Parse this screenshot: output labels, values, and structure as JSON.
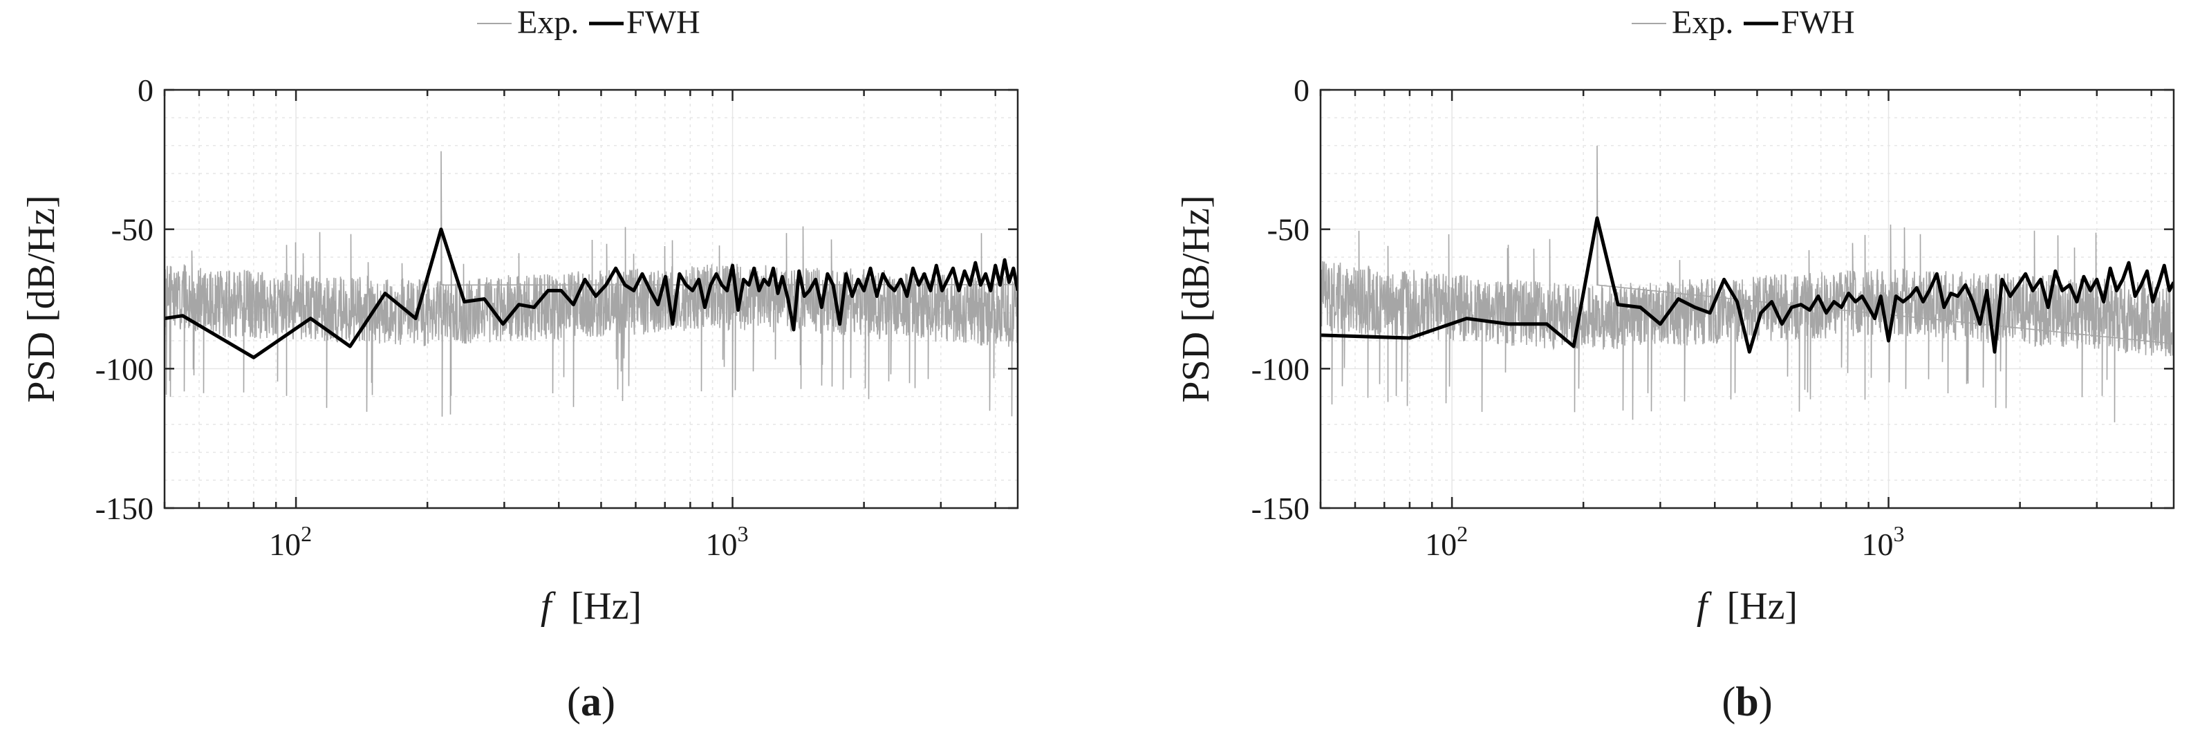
{
  "chart_data": [
    {
      "panel_label_open": "(",
      "panel_label_letter": "a",
      "panel_label_close": ")",
      "type": "line",
      "title": "",
      "xlabel_symbol": "f",
      "xlabel_unit": "[Hz]",
      "ylabel": "PSD [dB/Hz]",
      "xscale": "log",
      "xlim": [
        50,
        4500
      ],
      "ylim": [
        -150,
        0
      ],
      "xticks": [
        100,
        1000
      ],
      "xtick_labels": [
        {
          "base": "10",
          "exp": "2"
        },
        {
          "base": "10",
          "exp": "3"
        }
      ],
      "yticks": [
        0,
        -50,
        -100,
        -150
      ],
      "ytick_labels": [
        "0",
        "-50",
        "-100",
        "-150"
      ],
      "grid": true,
      "legend_position": "top-center",
      "series": [
        {
          "name": "Exp.",
          "color": "#a6a6a6",
          "style": "dense noisy band",
          "band_envelope": {
            "x": [
              50,
              100,
              200,
              1000,
              4500
            ],
            "center_db": [
              -75,
              -78,
              -80,
              -74,
              -80
            ],
            "half_width_db": [
              13,
              12,
              12,
              12,
              13
            ]
          },
          "peak": {
            "x": 215,
            "y": -22
          }
        },
        {
          "name": "FWH",
          "color": "#000000",
          "x": [
            50,
            55,
            80,
            108,
            133,
            160,
            188,
            215,
            243,
            270,
            298,
            324,
            351,
            378,
            405,
            432,
            459,
            486,
            513,
            540,
            567,
            594,
            621,
            648,
            675,
            702,
            729,
            756,
            783,
            810,
            837,
            864,
            891,
            918,
            945,
            972,
            1000,
            1030,
            1060,
            1090,
            1120,
            1150,
            1180,
            1210,
            1240,
            1270,
            1300,
            1340,
            1380,
            1420,
            1460,
            1500,
            1550,
            1600,
            1650,
            1700,
            1760,
            1820,
            1880,
            1940,
            2000,
            2070,
            2140,
            2210,
            2280,
            2350,
            2430,
            2510,
            2590,
            2670,
            2750,
            2840,
            2930,
            3020,
            3110,
            3200,
            3300,
            3400,
            3500,
            3600,
            3700,
            3800,
            3900,
            4000,
            4100,
            4200,
            4300,
            4400,
            4500
          ],
          "y": [
            -82,
            -81,
            -96,
            -82,
            -92,
            -73,
            -82,
            -50,
            -76,
            -75,
            -84,
            -77,
            -78,
            -72,
            -72,
            -77,
            -68,
            -74,
            -70,
            -64,
            -70,
            -72,
            -66,
            -72,
            -77,
            -67,
            -84,
            -66,
            -70,
            -72,
            -68,
            -78,
            -70,
            -66,
            -70,
            -72,
            -63,
            -79,
            -68,
            -70,
            -64,
            -72,
            -68,
            -70,
            -64,
            -73,
            -67,
            -75,
            -86,
            -65,
            -74,
            -72,
            -68,
            -78,
            -66,
            -70,
            -84,
            -66,
            -74,
            -68,
            -72,
            -64,
            -74,
            -66,
            -70,
            -72,
            -68,
            -74,
            -64,
            -70,
            -66,
            -72,
            -63,
            -72,
            -68,
            -64,
            -72,
            -65,
            -70,
            -62,
            -70,
            -66,
            -72,
            -63,
            -70,
            -61,
            -69,
            -64,
            -72
          ]
        }
      ]
    },
    {
      "panel_label_open": "(",
      "panel_label_letter": "b",
      "panel_label_close": ")",
      "type": "line",
      "title": "",
      "xlabel_symbol": "f",
      "xlabel_unit": "[Hz]",
      "ylabel": "PSD [dB/Hz]",
      "xscale": "log",
      "xlim": [
        50,
        4500
      ],
      "ylim": [
        -150,
        0
      ],
      "xticks": [
        100,
        1000
      ],
      "xtick_labels": [
        {
          "base": "10",
          "exp": "2"
        },
        {
          "base": "10",
          "exp": "3"
        }
      ],
      "yticks": [
        0,
        -50,
        -100,
        -150
      ],
      "ytick_labels": [
        "0",
        "-50",
        "-100",
        "-150"
      ],
      "grid": true,
      "legend_position": "top-center",
      "series": [
        {
          "name": "Exp.",
          "color": "#a6a6a6",
          "style": "dense noisy band",
          "band_envelope": {
            "x": [
              50,
              100,
              200,
              1000,
              4500
            ],
            "center_db": [
              -74,
              -78,
              -82,
              -76,
              -82
            ],
            "half_width_db": [
              13,
              12,
              12,
              12,
              14
            ]
          },
          "peak": {
            "x": 215,
            "y": -20
          }
        },
        {
          "name": "FWH",
          "color": "#000000",
          "x": [
            50,
            80,
            108,
            135,
            165,
            190,
            215,
            240,
            270,
            300,
            330,
            360,
            390,
            420,
            450,
            480,
            510,
            540,
            570,
            600,
            630,
            660,
            690,
            720,
            750,
            780,
            810,
            840,
            870,
            900,
            930,
            960,
            1000,
            1040,
            1080,
            1120,
            1160,
            1200,
            1240,
            1290,
            1340,
            1390,
            1440,
            1500,
            1560,
            1620,
            1680,
            1750,
            1820,
            1900,
            1980,
            2060,
            2140,
            2230,
            2320,
            2410,
            2500,
            2600,
            2700,
            2800,
            2900,
            3000,
            3110,
            3220,
            3330,
            3440,
            3550,
            3670,
            3790,
            3910,
            4030,
            4150,
            4280,
            4400,
            4500
          ],
          "y": [
            -88,
            -89,
            -82,
            -84,
            -84,
            -92,
            -46,
            -77,
            -78,
            -84,
            -75,
            -78,
            -80,
            -68,
            -76,
            -94,
            -80,
            -76,
            -84,
            -78,
            -77,
            -79,
            -74,
            -80,
            -76,
            -78,
            -73,
            -76,
            -74,
            -78,
            -82,
            -74,
            -90,
            -74,
            -76,
            -74,
            -71,
            -76,
            -72,
            -66,
            -78,
            -73,
            -74,
            -70,
            -76,
            -84,
            -72,
            -94,
            -68,
            -74,
            -70,
            -66,
            -72,
            -68,
            -78,
            -65,
            -72,
            -70,
            -76,
            -67,
            -72,
            -68,
            -76,
            -64,
            -72,
            -68,
            -62,
            -74,
            -70,
            -65,
            -76,
            -70,
            -63,
            -72,
            -69
          ]
        }
      ]
    }
  ]
}
